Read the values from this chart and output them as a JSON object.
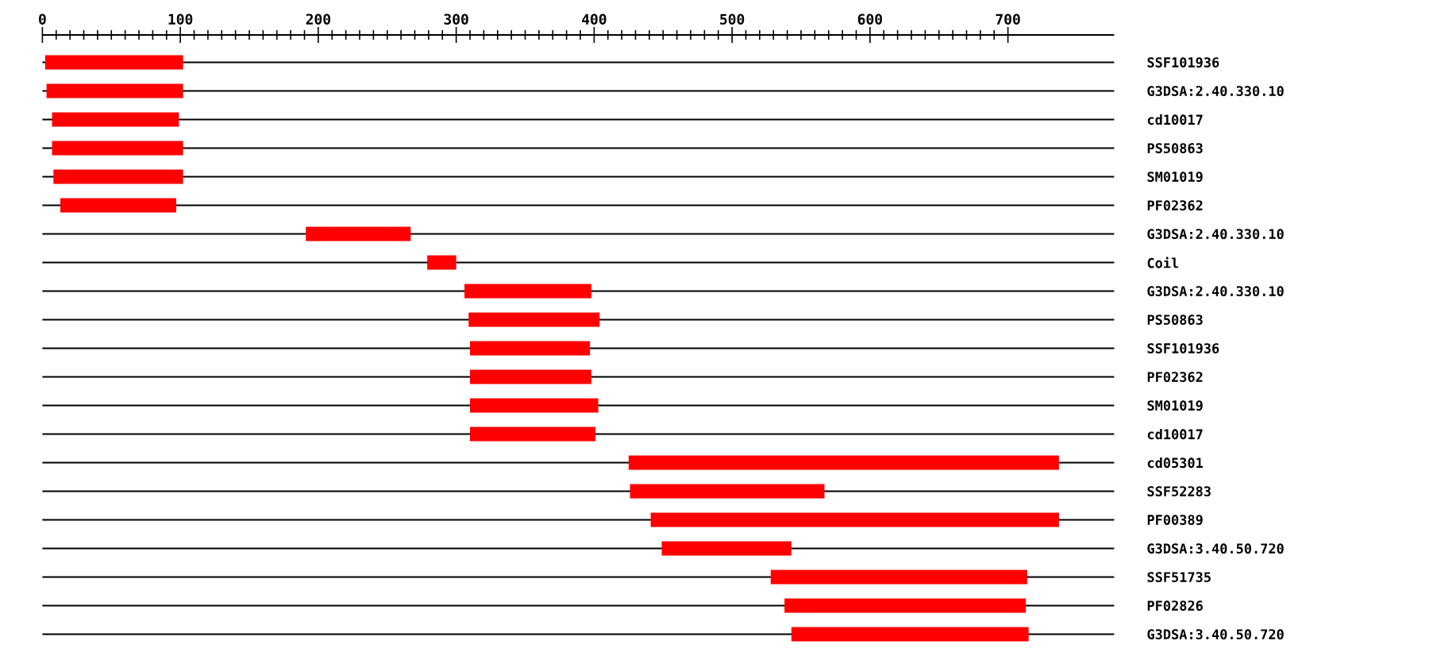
{
  "chart_data": {
    "type": "bar",
    "orientation": "horizontal",
    "categories": [
      "SSF101936",
      "G3DSA:2.40.330.10",
      "cd10017",
      "PS50863",
      "SM01019",
      "PF02362",
      "G3DSA:2.40.330.10",
      "Coil",
      "G3DSA:2.40.330.10",
      "PS50863",
      "SSF101936",
      "PF02362",
      "SM01019",
      "cd10017",
      "cd05301",
      "SSF52283",
      "PF00389",
      "G3DSA:3.40.50.720",
      "SSF51735",
      "PF02826",
      "G3DSA:3.40.50.720"
    ],
    "base": [
      2,
      3,
      7,
      7,
      8,
      13,
      191,
      279,
      306,
      309,
      310,
      310,
      310,
      310,
      425,
      426,
      441,
      449,
      528,
      538,
      543
    ],
    "values": [
      100,
      99,
      92,
      95,
      94,
      84,
      76,
      21,
      92,
      95,
      87,
      88,
      93,
      91,
      312,
      141,
      296,
      94,
      186,
      175,
      172
    ],
    "color": "#ff0000",
    "xlim": [
      0,
      777
    ],
    "xticks": [
      0,
      100,
      200,
      300,
      400,
      500,
      600,
      700
    ],
    "grid": "y"
  }
}
